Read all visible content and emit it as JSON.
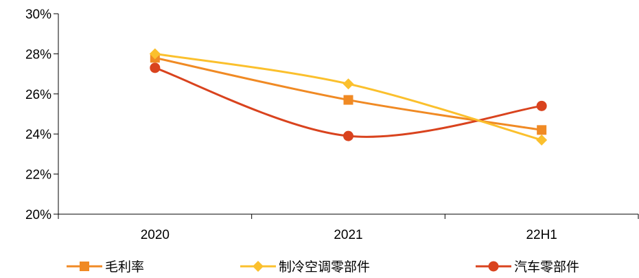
{
  "chart_data": {
    "type": "line",
    "title": "",
    "xlabel": "",
    "ylabel": "",
    "categories": [
      "2020",
      "2021",
      "22H1"
    ],
    "ylim": [
      0.2,
      0.3
    ],
    "y_ticks": [
      0.2,
      0.22,
      0.24,
      0.26,
      0.28,
      0.3
    ],
    "y_tick_labels": [
      "20%",
      "22%",
      "24%",
      "26%",
      "28%",
      "30%"
    ],
    "smooth": true,
    "grid": false,
    "legend_position": "bottom",
    "series": [
      {
        "name": "毛利率",
        "values": [
          0.278,
          0.257,
          0.242
        ],
        "color": "#F08A24",
        "marker": "square"
      },
      {
        "name": "制冷空调零部件",
        "values": [
          0.28,
          0.265,
          0.237
        ],
        "color": "#FBC02D",
        "marker": "diamond"
      },
      {
        "name": "汽车零部件",
        "values": [
          0.273,
          0.239,
          0.254
        ],
        "color": "#D9431E",
        "marker": "circle"
      }
    ]
  }
}
